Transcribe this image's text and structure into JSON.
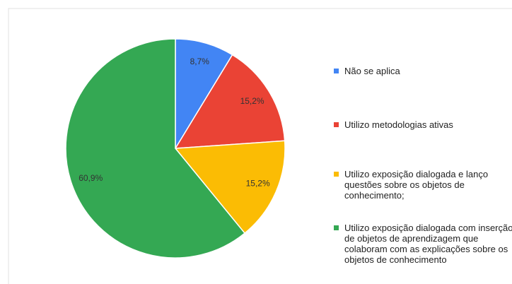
{
  "chart_data": {
    "type": "pie",
    "categories": [
      "Não se aplica",
      "Utilizo metodologias ativas",
      "Utilizo exposição dialogada e lanço questões sobre os objetos de conhecimento;",
      "Utilizo exposição dialogada com inserção de objetos de aprendizagem que colaboram com as explicações sobre os objetos de conhecimento"
    ],
    "values": [
      8.7,
      15.2,
      15.2,
      60.9
    ],
    "value_labels": [
      "8,7%",
      "15,2%",
      "15,2%",
      "60,9%"
    ],
    "colors": [
      "#4285f4",
      "#ea4335",
      "#fbbc04",
      "#34a853"
    ],
    "legend": "right"
  }
}
